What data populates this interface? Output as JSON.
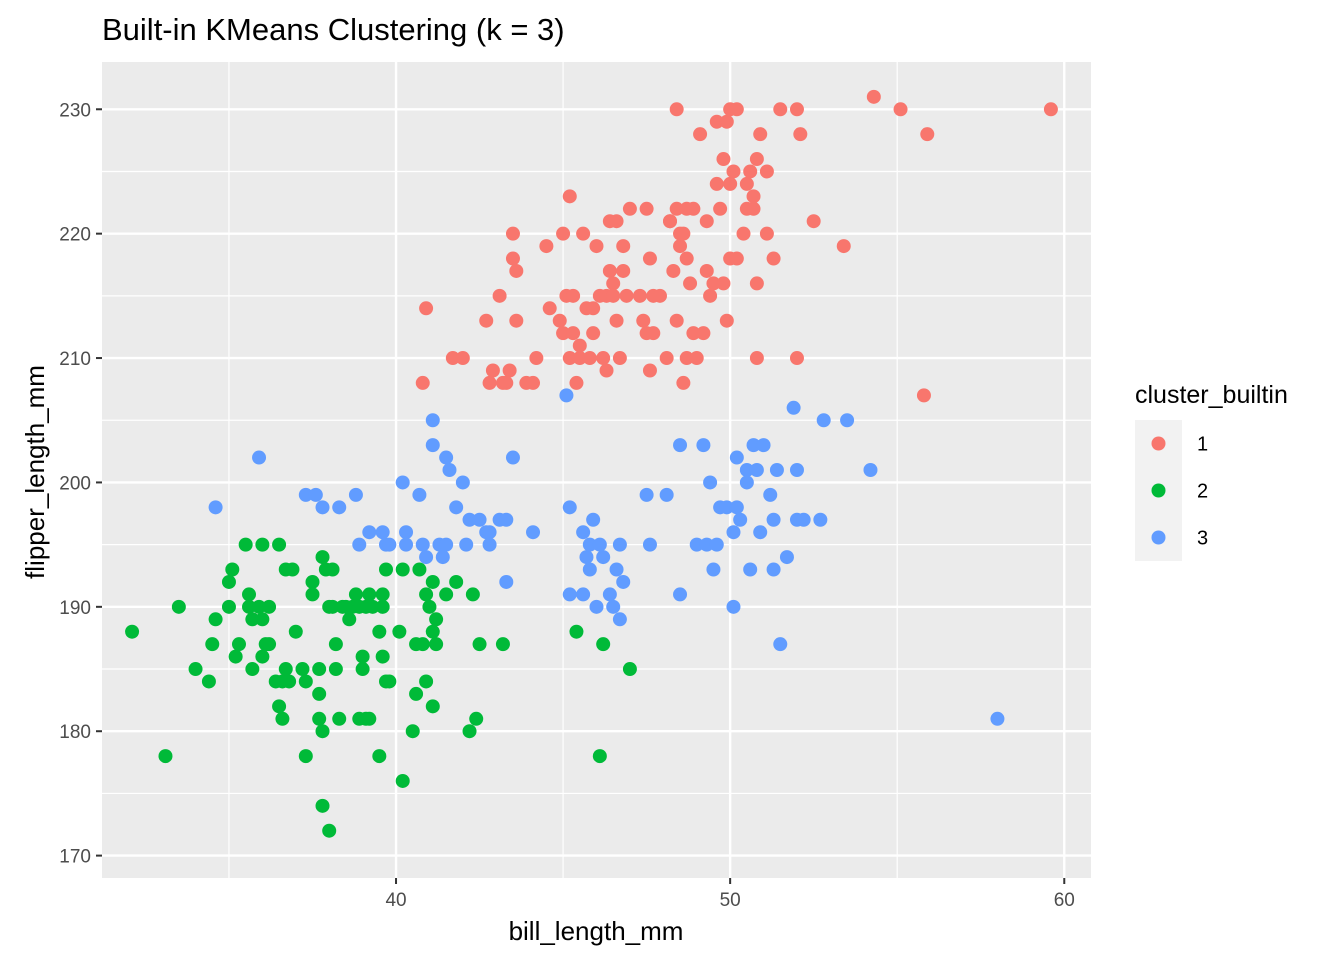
{
  "chart_data": {
    "type": "scatter",
    "title": "Built-in KMeans Clustering (k = 3)",
    "xlabel": "bill_length_mm",
    "ylabel": "flipper_length_mm",
    "xlim": [
      31.2,
      60.8
    ],
    "ylim": [
      168.2,
      233.8
    ],
    "x_ticks": [
      40,
      50,
      60
    ],
    "y_ticks": [
      170,
      180,
      190,
      200,
      210,
      220,
      230
    ],
    "grid": true,
    "legend": {
      "title": "cluster_builtin",
      "position": "right"
    },
    "series": [
      {
        "name": "1",
        "color": "#F8766D",
        "points": [
          [
            40.9,
            214
          ],
          [
            40.8,
            208
          ],
          [
            41.7,
            210
          ],
          [
            42.0,
            210
          ],
          [
            42.7,
            213
          ],
          [
            42.8,
            208
          ],
          [
            42.9,
            209
          ],
          [
            43.1,
            215
          ],
          [
            43.2,
            208
          ],
          [
            43.3,
            208
          ],
          [
            43.4,
            209
          ],
          [
            43.5,
            218
          ],
          [
            43.5,
            220
          ],
          [
            43.6,
            213
          ],
          [
            43.6,
            217
          ],
          [
            43.9,
            208
          ],
          [
            44.1,
            208
          ],
          [
            44.2,
            210
          ],
          [
            44.5,
            219
          ],
          [
            44.6,
            214
          ],
          [
            44.9,
            213
          ],
          [
            45.0,
            220
          ],
          [
            45.0,
            212
          ],
          [
            45.1,
            215
          ],
          [
            45.2,
            210
          ],
          [
            45.2,
            223
          ],
          [
            45.3,
            215
          ],
          [
            45.3,
            212
          ],
          [
            45.4,
            208
          ],
          [
            45.5,
            210
          ],
          [
            45.5,
            211
          ],
          [
            45.6,
            220
          ],
          [
            45.7,
            214
          ],
          [
            45.8,
            210
          ],
          [
            45.9,
            214
          ],
          [
            45.9,
            212
          ],
          [
            46.0,
            219
          ],
          [
            46.1,
            215
          ],
          [
            46.2,
            210
          ],
          [
            46.3,
            215
          ],
          [
            46.4,
            217
          ],
          [
            46.4,
            221
          ],
          [
            46.6,
            221
          ],
          [
            46.5,
            216
          ],
          [
            46.5,
            215
          ],
          [
            46.3,
            209
          ],
          [
            46.6,
            213
          ],
          [
            46.7,
            210
          ],
          [
            46.8,
            219
          ],
          [
            46.8,
            217
          ],
          [
            46.9,
            215
          ],
          [
            47.0,
            222
          ],
          [
            47.3,
            215
          ],
          [
            47.4,
            213
          ],
          [
            47.5,
            222
          ],
          [
            47.5,
            212
          ],
          [
            47.6,
            218
          ],
          [
            47.7,
            215
          ],
          [
            47.6,
            209
          ],
          [
            47.7,
            212
          ],
          [
            47.9,
            215
          ],
          [
            48.1,
            210
          ],
          [
            48.2,
            221
          ],
          [
            48.3,
            217
          ],
          [
            48.4,
            213
          ],
          [
            48.5,
            220
          ],
          [
            48.4,
            222
          ],
          [
            48.5,
            219
          ],
          [
            48.6,
            220
          ],
          [
            48.7,
            222
          ],
          [
            48.7,
            218
          ],
          [
            48.7,
            210
          ],
          [
            48.6,
            208
          ],
          [
            48.9,
            212
          ],
          [
            48.8,
            216
          ],
          [
            48.9,
            222
          ],
          [
            49.0,
            210
          ],
          [
            49.1,
            228
          ],
          [
            49.2,
            212
          ],
          [
            49.3,
            221
          ],
          [
            49.3,
            217
          ],
          [
            49.4,
            215
          ],
          [
            49.5,
            216
          ],
          [
            49.6,
            224
          ],
          [
            49.6,
            229
          ],
          [
            49.7,
            222
          ],
          [
            49.8,
            226
          ],
          [
            49.8,
            216
          ],
          [
            49.9,
            229
          ],
          [
            49.9,
            213
          ],
          [
            50.0,
            230
          ],
          [
            50.0,
            224
          ],
          [
            50.1,
            225
          ],
          [
            50.0,
            218
          ],
          [
            50.2,
            218
          ],
          [
            50.2,
            230
          ],
          [
            50.4,
            220
          ],
          [
            50.5,
            224
          ],
          [
            50.5,
            222
          ],
          [
            50.6,
            225
          ],
          [
            50.7,
            223
          ],
          [
            50.7,
            222
          ],
          [
            50.8,
            216
          ],
          [
            50.8,
            210
          ],
          [
            50.8,
            226
          ],
          [
            50.9,
            228
          ],
          [
            51.1,
            220
          ],
          [
            51.1,
            225
          ],
          [
            51.3,
            218
          ],
          [
            51.5,
            230
          ],
          [
            52.0,
            230
          ],
          [
            52.0,
            210
          ],
          [
            52.1,
            228
          ],
          [
            52.5,
            221
          ],
          [
            53.4,
            219
          ],
          [
            54.3,
            231
          ],
          [
            55.1,
            230
          ],
          [
            55.8,
            207
          ],
          [
            55.9,
            228
          ],
          [
            59.6,
            230
          ],
          [
            48.4,
            230
          ],
          [
            48.2,
            221
          ]
        ]
      },
      {
        "name": "2",
        "color": "#00BA38",
        "points": [
          [
            32.1,
            188
          ],
          [
            33.1,
            178
          ],
          [
            33.5,
            190
          ],
          [
            34.0,
            185
          ],
          [
            34.4,
            184
          ],
          [
            34.5,
            187
          ],
          [
            34.6,
            189
          ],
          [
            35.0,
            190
          ],
          [
            35.0,
            192
          ],
          [
            35.1,
            193
          ],
          [
            35.2,
            186
          ],
          [
            35.3,
            187
          ],
          [
            35.5,
            195
          ],
          [
            35.6,
            191
          ],
          [
            35.6,
            190
          ],
          [
            35.7,
            185
          ],
          [
            35.7,
            189
          ],
          [
            35.9,
            190
          ],
          [
            36.0,
            195
          ],
          [
            36.0,
            189
          ],
          [
            36.0,
            186
          ],
          [
            36.1,
            187
          ],
          [
            36.2,
            187
          ],
          [
            36.2,
            190
          ],
          [
            36.4,
            184
          ],
          [
            36.5,
            195
          ],
          [
            36.5,
            182
          ],
          [
            36.6,
            184
          ],
          [
            36.6,
            181
          ],
          [
            36.7,
            185
          ],
          [
            36.7,
            193
          ],
          [
            36.8,
            184
          ],
          [
            36.9,
            193
          ],
          [
            37.0,
            188
          ],
          [
            37.2,
            185
          ],
          [
            37.3,
            178
          ],
          [
            37.3,
            184
          ],
          [
            37.5,
            192
          ],
          [
            37.5,
            191
          ],
          [
            37.7,
            185
          ],
          [
            37.7,
            183
          ],
          [
            37.7,
            181
          ],
          [
            37.8,
            174
          ],
          [
            37.8,
            194
          ],
          [
            37.8,
            180
          ],
          [
            37.9,
            193
          ],
          [
            38.0,
            190
          ],
          [
            38.0,
            172
          ],
          [
            38.1,
            193
          ],
          [
            38.1,
            190
          ],
          [
            38.2,
            187
          ],
          [
            38.2,
            185
          ],
          [
            38.3,
            181
          ],
          [
            38.4,
            190
          ],
          [
            38.5,
            190
          ],
          [
            38.6,
            189
          ],
          [
            38.7,
            190
          ],
          [
            38.8,
            191
          ],
          [
            38.9,
            190
          ],
          [
            38.9,
            181
          ],
          [
            39.0,
            185
          ],
          [
            39.0,
            186
          ],
          [
            39.1,
            181
          ],
          [
            39.1,
            190
          ],
          [
            39.2,
            191
          ],
          [
            39.2,
            181
          ],
          [
            39.3,
            190
          ],
          [
            39.5,
            188
          ],
          [
            39.5,
            178
          ],
          [
            39.6,
            186
          ],
          [
            39.6,
            191
          ],
          [
            39.6,
            190
          ],
          [
            39.7,
            193
          ],
          [
            39.7,
            184
          ],
          [
            39.8,
            184
          ],
          [
            40.1,
            188
          ],
          [
            40.2,
            176
          ],
          [
            40.2,
            193
          ],
          [
            40.5,
            180
          ],
          [
            40.6,
            187
          ],
          [
            40.6,
            183
          ],
          [
            40.7,
            193
          ],
          [
            40.8,
            187
          ],
          [
            40.9,
            191
          ],
          [
            40.9,
            184
          ],
          [
            41.0,
            190
          ],
          [
            41.1,
            182
          ],
          [
            41.1,
            188
          ],
          [
            41.1,
            192
          ],
          [
            41.2,
            189
          ],
          [
            41.2,
            187
          ],
          [
            41.5,
            191
          ],
          [
            41.8,
            192
          ],
          [
            42.2,
            180
          ],
          [
            42.3,
            191
          ],
          [
            42.4,
            181
          ],
          [
            42.5,
            187
          ],
          [
            43.2,
            187
          ],
          [
            45.4,
            188
          ],
          [
            46.1,
            178
          ],
          [
            46.2,
            187
          ],
          [
            47.0,
            185
          ]
        ]
      },
      {
        "name": "3",
        "color": "#619CFF",
        "points": [
          [
            34.6,
            198
          ],
          [
            35.9,
            202
          ],
          [
            37.3,
            199
          ],
          [
            37.6,
            199
          ],
          [
            37.8,
            198
          ],
          [
            38.3,
            198
          ],
          [
            38.8,
            199
          ],
          [
            38.9,
            195
          ],
          [
            39.6,
            196
          ],
          [
            39.7,
            195
          ],
          [
            39.8,
            195
          ],
          [
            39.2,
            196
          ],
          [
            40.2,
            200
          ],
          [
            40.3,
            196
          ],
          [
            40.3,
            195
          ],
          [
            40.7,
            199
          ],
          [
            40.8,
            195
          ],
          [
            40.9,
            194
          ],
          [
            41.1,
            203
          ],
          [
            41.1,
            205
          ],
          [
            41.3,
            195
          ],
          [
            41.4,
            194
          ],
          [
            41.5,
            202
          ],
          [
            41.5,
            195
          ],
          [
            41.6,
            201
          ],
          [
            41.8,
            198
          ],
          [
            42.0,
            200
          ],
          [
            42.1,
            195
          ],
          [
            42.2,
            197
          ],
          [
            42.5,
            197
          ],
          [
            42.7,
            196
          ],
          [
            42.8,
            196
          ],
          [
            42.8,
            195
          ],
          [
            43.1,
            197
          ],
          [
            43.3,
            197
          ],
          [
            43.3,
            192
          ],
          [
            43.5,
            202
          ],
          [
            44.1,
            196
          ],
          [
            45.1,
            207
          ],
          [
            45.2,
            198
          ],
          [
            45.2,
            191
          ],
          [
            45.6,
            191
          ],
          [
            45.6,
            196
          ],
          [
            45.7,
            194
          ],
          [
            45.8,
            193
          ],
          [
            45.8,
            195
          ],
          [
            45.9,
            197
          ],
          [
            46.0,
            190
          ],
          [
            46.1,
            195
          ],
          [
            46.2,
            194
          ],
          [
            46.4,
            191
          ],
          [
            46.5,
            190
          ],
          [
            46.6,
            193
          ],
          [
            46.7,
            195
          ],
          [
            46.7,
            189
          ],
          [
            46.8,
            192
          ],
          [
            47.5,
            199
          ],
          [
            47.6,
            195
          ],
          [
            48.1,
            199
          ],
          [
            48.5,
            203
          ],
          [
            48.5,
            191
          ],
          [
            49.0,
            195
          ],
          [
            49.2,
            203
          ],
          [
            49.3,
            195
          ],
          [
            49.4,
            200
          ],
          [
            49.5,
            193
          ],
          [
            49.6,
            195
          ],
          [
            49.7,
            198
          ],
          [
            49.9,
            198
          ],
          [
            50.1,
            196
          ],
          [
            50.1,
            190
          ],
          [
            50.2,
            202
          ],
          [
            50.2,
            198
          ],
          [
            50.3,
            197
          ],
          [
            50.5,
            201
          ],
          [
            50.5,
            200
          ],
          [
            50.6,
            193
          ],
          [
            50.7,
            203
          ],
          [
            50.8,
            201
          ],
          [
            50.9,
            196
          ],
          [
            51.0,
            203
          ],
          [
            51.2,
            199
          ],
          [
            51.3,
            197
          ],
          [
            51.3,
            193
          ],
          [
            51.4,
            201
          ],
          [
            51.5,
            187
          ],
          [
            51.7,
            194
          ],
          [
            51.9,
            206
          ],
          [
            52.0,
            201
          ],
          [
            52.0,
            197
          ],
          [
            52.2,
            197
          ],
          [
            52.7,
            197
          ],
          [
            52.8,
            205
          ],
          [
            53.5,
            205
          ],
          [
            54.2,
            201
          ],
          [
            58.0,
            181
          ]
        ]
      }
    ]
  }
}
